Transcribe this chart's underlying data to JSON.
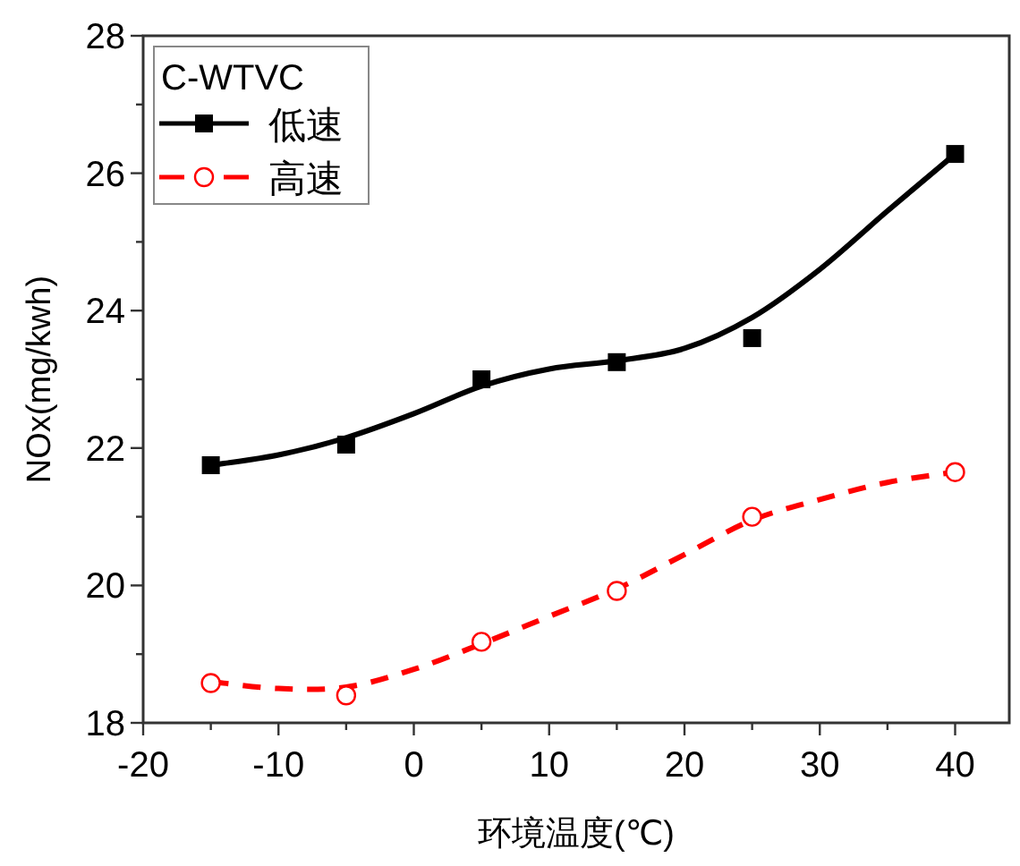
{
  "chart_data": {
    "type": "scatter",
    "xlabel": "环境温度(℃)",
    "ylabel": "NOx(mg/kwh)",
    "legend_title": "C-WTVC",
    "legend": "top left",
    "xlim": [
      -20,
      44
    ],
    "ylim": [
      18,
      28
    ],
    "xticks": [
      -20,
      {
        "value": -15,
        "label": null
      },
      -10,
      {
        "value": -5,
        "label": null
      },
      0,
      {
        "value": 5,
        "label": null
      },
      10,
      {
        "value": 15,
        "label": null
      },
      20,
      {
        "value": 25,
        "label": null
      },
      30,
      {
        "value": 35,
        "label": null
      },
      40
    ],
    "yticks": [
      18,
      {
        "value": 19,
        "label": null
      },
      20,
      {
        "value": 21,
        "label": null
      },
      22,
      {
        "value": 23,
        "label": null
      },
      24,
      {
        "value": 25,
        "label": null
      },
      26,
      {
        "value": 27,
        "label": null
      },
      28
    ],
    "series": [
      {
        "name": "低速",
        "type": "scatter",
        "color": "#000000",
        "marker": "square",
        "line_style": "solid",
        "x": [
          -15,
          -5,
          5,
          15,
          25,
          40
        ],
        "values": [
          21.75,
          22.05,
          23.0,
          23.25,
          23.6,
          26.28
        ]
      },
      {
        "name": "高速",
        "type": "scatter",
        "color": "#ff0000",
        "marker": "circle",
        "line_style": "dashed",
        "x": [
          -15,
          -5,
          5,
          15,
          25,
          40
        ],
        "values": [
          18.58,
          18.4,
          19.18,
          19.92,
          21.0,
          21.65
        ]
      },
      {
        "type": "line",
        "color": "#000000",
        "line_style": "solid",
        "x": [
          -15,
          -10,
          -5,
          0,
          5,
          10,
          15,
          20,
          25,
          30,
          35,
          40
        ],
        "values": [
          21.75,
          21.9,
          22.15,
          22.5,
          22.9,
          23.15,
          23.27,
          23.45,
          23.9,
          24.6,
          25.45,
          26.28
        ]
      },
      {
        "type": "line",
        "color": "#ff0000",
        "line_style": "dashed",
        "x": [
          -15,
          -10,
          -5,
          0,
          5,
          10,
          15,
          20,
          25,
          30,
          35,
          40
        ],
        "values": [
          18.6,
          18.5,
          18.52,
          18.78,
          19.15,
          19.55,
          19.95,
          20.45,
          20.95,
          21.25,
          21.5,
          21.65
        ]
      }
    ]
  }
}
